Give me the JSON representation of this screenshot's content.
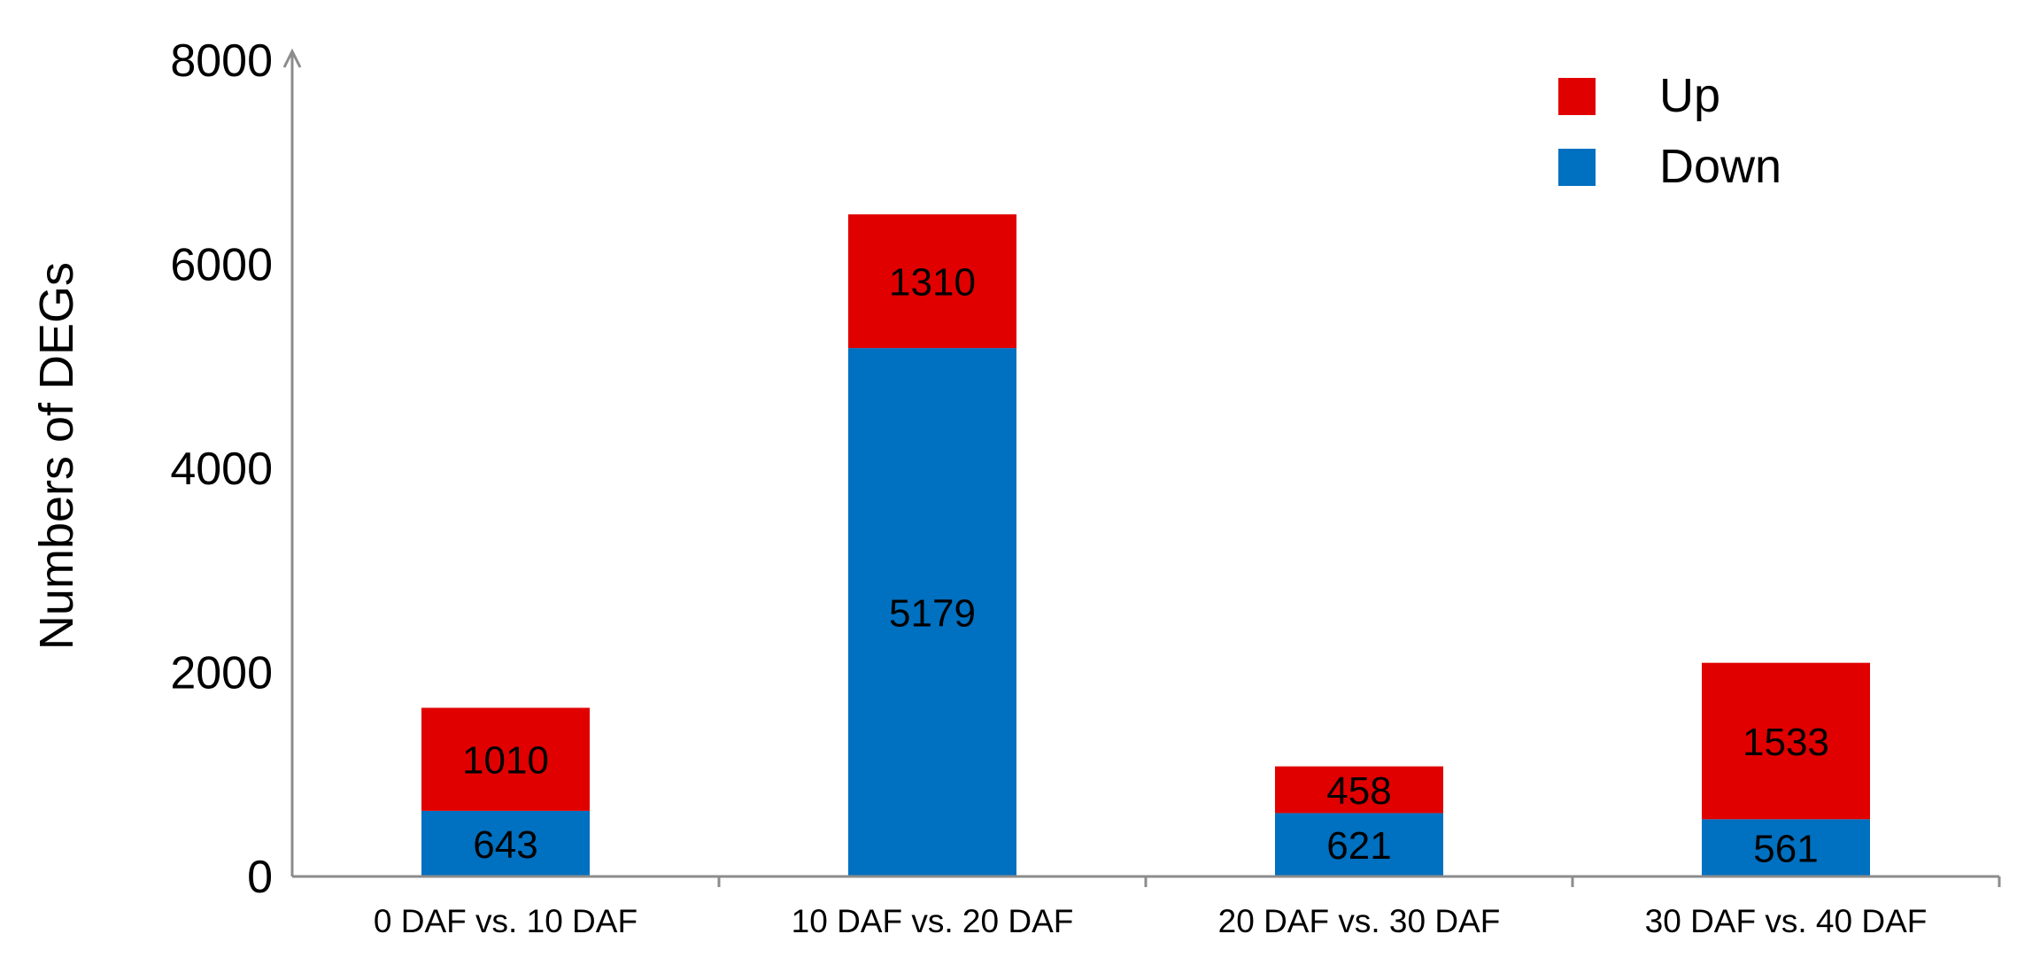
{
  "chart_data": {
    "type": "bar",
    "stacked": true,
    "categories": [
      "0 DAF vs. 10 DAF",
      "10 DAF vs. 20 DAF",
      "20 DAF vs. 30 DAF",
      "30 DAF vs. 40 DAF"
    ],
    "series": [
      {
        "name": "Down",
        "values": [
          643,
          5179,
          621,
          561
        ],
        "color": "#0070c0"
      },
      {
        "name": "Up",
        "values": [
          1010,
          1310,
          458,
          1533
        ],
        "color": "#e00000"
      }
    ],
    "ylabel": "Numbers of DEGs",
    "xlabel": "",
    "ylim": [
      0,
      8000
    ],
    "yticks": [
      0,
      2000,
      4000,
      6000,
      8000
    ],
    "grid": false,
    "legend_position": "top-right",
    "legend_order": [
      "Up",
      "Down"
    ]
  }
}
